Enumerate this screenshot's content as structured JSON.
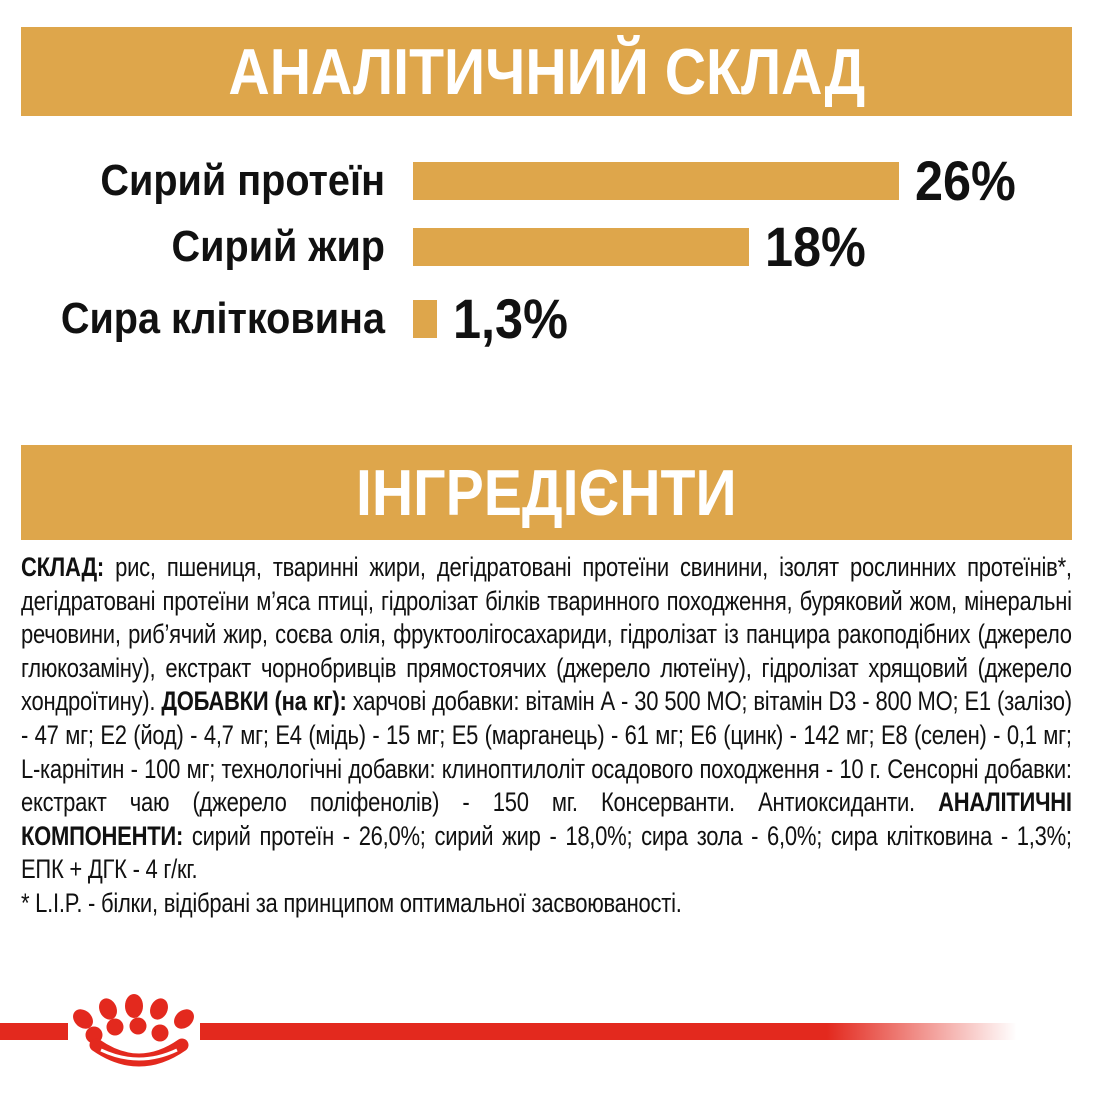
{
  "colors": {
    "gold": "#dea64b",
    "red": "#e3291e",
    "text": "#111111",
    "banner_text": "#ffffff"
  },
  "banners": {
    "analytical": "АНАЛІТИЧНИЙ СКЛАД",
    "ingredients": "ІНГРЕДІЄНТИ"
  },
  "chart_data": {
    "type": "bar",
    "orientation": "horizontal",
    "title": "АНАЛІТИЧНИЙ СКЛАД",
    "categories": [
      "Сирий протеїн",
      "Сирий жир",
      "Сира клітковина"
    ],
    "values": [
      26,
      18,
      1.3
    ],
    "value_labels": [
      "26%",
      "18%",
      "1,3%"
    ],
    "xlim": [
      0,
      26
    ],
    "bar_color": "#dea64b",
    "grid": false,
    "legend": false
  },
  "ingredients": {
    "composition_label": "СКЛАД:",
    "composition_text": "рис, пшениця, тваринні жири, дегідратовані протеїни свинини, ізолят рослинних протеїнів*, дегідратовані протеїни м’яса птиці, гідролізат білків тваринного походження, буряковий жом, мінеральні речовини, риб’ячий жир, соєва олія, фруктоолігосахариди, гідролізат із панцира ракоподібних (джерело глюкозаміну), екстракт чорнобривців прямостоячих (джерело лютеїну), гідролізат хрящовий (джерело хондроїтину).",
    "additives_label": "ДОБАВКИ (на кг):",
    "additives_text": "харчові добавки: вітамін А - 30 500 МО; вітамін D3 - 800 МО; Е1 (залізо) - 47 мг; Е2 (йод) - 4,7 мг; Е4 (мідь) - 15 мг; Е5 (марганець) - 61 мг; Е6 (цинк) - 142 мг; Е8 (селен) - 0,1 мг; L-карнітин - 100 мг; технологічні добавки: клиноптилоліт осадового походження - 10 г. Сенсорні добавки: екстракт чаю (джерело поліфенолів) - 150 мг. Консерванти. Антиоксиданти.",
    "analytical_label": "АНАЛІТИЧНІ КОМПОНЕНТИ:",
    "analytical_text": "сирий протеїн - 26,0%; сирий жир - 18,0%; сира зола - 6,0%; сира клітковина - 1,3%; ЕПК + ДГК - 4 г/кг.",
    "footnote": "* L.I.P. - білки, відібрані за принципом оптимальної засвоюваності."
  },
  "footer": {
    "logo": "royal-canin-crown"
  }
}
